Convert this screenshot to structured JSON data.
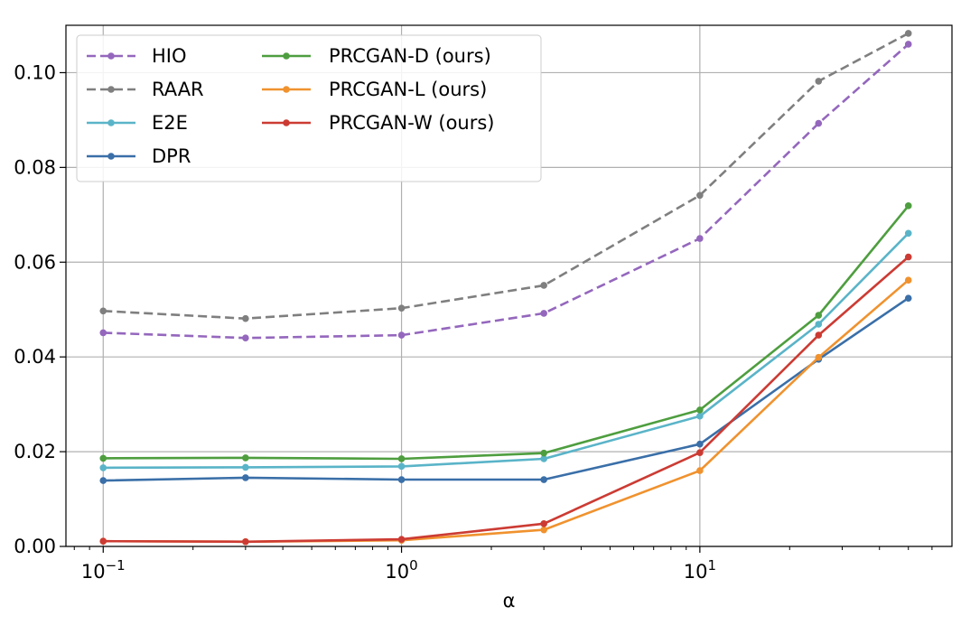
{
  "chart_data": {
    "type": "line",
    "title": "",
    "xlabel": "α",
    "ylabel": "",
    "xscale": "log",
    "xlim": [
      0.075,
      70
    ],
    "ylim": [
      0.0,
      0.11
    ],
    "grid": true,
    "legend_position": "top-left",
    "x": [
      0.1,
      0.3,
      1,
      3,
      10,
      25,
      50
    ],
    "x_ticks": [
      {
        "value": 0.1,
        "base": "10",
        "exp": "−1"
      },
      {
        "value": 1,
        "base": "10",
        "exp": "0"
      },
      {
        "value": 10,
        "base": "10",
        "exp": "1"
      }
    ],
    "y_ticks": [
      {
        "value": 0.0,
        "label": "0.00"
      },
      {
        "value": 0.02,
        "label": "0.02"
      },
      {
        "value": 0.04,
        "label": "0.04"
      },
      {
        "value": 0.06,
        "label": "0.06"
      },
      {
        "value": 0.08,
        "label": "0.08"
      },
      {
        "value": 0.1,
        "label": "0.10"
      }
    ],
    "series": [
      {
        "name": "HIO",
        "color": "#9467bd",
        "dashed": true,
        "values": [
          0.0451,
          0.044,
          0.0446,
          0.0492,
          0.065,
          0.0893,
          0.106
        ]
      },
      {
        "name": "RAAR",
        "color": "#7f7f7f",
        "dashed": true,
        "values": [
          0.0497,
          0.0481,
          0.0503,
          0.0551,
          0.0741,
          0.0982,
          0.1083
        ]
      },
      {
        "name": "E2E",
        "color": "#5ab4c8",
        "dashed": false,
        "values": [
          0.0166,
          0.0167,
          0.0169,
          0.0185,
          0.0275,
          0.0469,
          0.0661
        ]
      },
      {
        "name": "DPR",
        "color": "#3a6fa8",
        "dashed": false,
        "values": [
          0.0139,
          0.0145,
          0.0141,
          0.0141,
          0.0216,
          0.0395,
          0.0524
        ]
      },
      {
        "name": "PRCGAN-D (ours)",
        "color": "#4e9e3f",
        "dashed": false,
        "values": [
          0.0186,
          0.0187,
          0.0185,
          0.0197,
          0.0288,
          0.0488,
          0.0719
        ]
      },
      {
        "name": "PRCGAN-L (ours)",
        "color": "#f0922e",
        "dashed": false,
        "values": [
          0.0011,
          0.001,
          0.0013,
          0.0035,
          0.016,
          0.0399,
          0.0562
        ]
      },
      {
        "name": "PRCGAN-W (ours)",
        "color": "#cc3b33",
        "dashed": false,
        "values": [
          0.0011,
          0.001,
          0.0015,
          0.0048,
          0.0198,
          0.0446,
          0.0611
        ]
      }
    ]
  }
}
